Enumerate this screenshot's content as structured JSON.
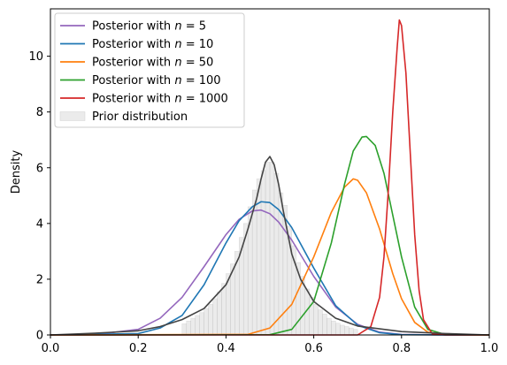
{
  "chart_data": {
    "type": "line",
    "title": "",
    "xlabel": "",
    "ylabel": "Density",
    "xlim": [
      0.0,
      1.0
    ],
    "ylim": [
      0,
      11.7
    ],
    "xticks": [
      "0.0",
      "0.2",
      "0.4",
      "0.6",
      "0.8",
      "1.0"
    ],
    "yticks": [
      "0",
      "2",
      "4",
      "6",
      "8",
      "10"
    ],
    "grid": false,
    "legend_position": "top-left",
    "series": [
      {
        "name": "Posterior with n = 5",
        "legend_prefix": "Posterior with ",
        "legend_var": "n",
        "legend_rest": " = 5",
        "color": "#9467bd",
        "x": [
          0.0,
          0.1,
          0.2,
          0.25,
          0.3,
          0.35,
          0.4,
          0.43,
          0.46,
          0.48,
          0.5,
          0.52,
          0.55,
          0.6,
          0.65,
          0.7,
          0.75,
          0.8,
          0.9,
          1.0
        ],
        "y": [
          0.0,
          0.01,
          0.2,
          0.6,
          1.35,
          2.45,
          3.6,
          4.15,
          4.45,
          4.48,
          4.35,
          4.05,
          3.4,
          2.1,
          1.0,
          0.38,
          0.1,
          0.02,
          0.0,
          0.0
        ]
      },
      {
        "name": "Posterior with n = 10",
        "legend_prefix": "Posterior with ",
        "legend_var": "n",
        "legend_rest": " = 10",
        "color": "#1f77b4",
        "x": [
          0.0,
          0.2,
          0.25,
          0.3,
          0.35,
          0.4,
          0.43,
          0.46,
          0.48,
          0.5,
          0.52,
          0.55,
          0.6,
          0.65,
          0.7,
          0.75,
          0.8,
          0.9,
          1.0
        ],
        "y": [
          0.0,
          0.05,
          0.25,
          0.7,
          1.8,
          3.3,
          4.1,
          4.6,
          4.78,
          4.75,
          4.5,
          3.85,
          2.4,
          1.05,
          0.35,
          0.08,
          0.01,
          0.0,
          0.0
        ]
      },
      {
        "name": "Posterior with n = 50",
        "legend_prefix": "Posterior with ",
        "legend_var": "n",
        "legend_rest": " = 50",
        "color": "#ff7f0e",
        "x": [
          0.0,
          0.45,
          0.5,
          0.55,
          0.6,
          0.64,
          0.67,
          0.69,
          0.7,
          0.72,
          0.75,
          0.78,
          0.8,
          0.83,
          0.86,
          0.9,
          1.0
        ],
        "y": [
          0.0,
          0.02,
          0.25,
          1.1,
          2.8,
          4.4,
          5.3,
          5.6,
          5.55,
          5.1,
          3.8,
          2.2,
          1.3,
          0.45,
          0.1,
          0.01,
          0.0
        ]
      },
      {
        "name": "Posterior with n = 100",
        "legend_prefix": "Posterior with ",
        "legend_var": "n",
        "legend_rest": " = 100",
        "color": "#2ca02c",
        "x": [
          0.0,
          0.5,
          0.55,
          0.6,
          0.64,
          0.67,
          0.69,
          0.71,
          0.72,
          0.74,
          0.76,
          0.78,
          0.8,
          0.83,
          0.86,
          0.9,
          1.0
        ],
        "y": [
          0.0,
          0.01,
          0.2,
          1.2,
          3.3,
          5.4,
          6.6,
          7.1,
          7.12,
          6.8,
          5.8,
          4.3,
          2.8,
          1.0,
          0.2,
          0.01,
          0.0
        ]
      },
      {
        "name": "Posterior with n = 1000",
        "legend_prefix": "Posterior with ",
        "legend_var": "n",
        "legend_rest": " = 1000",
        "color": "#d62728",
        "x": [
          0.0,
          0.7,
          0.73,
          0.75,
          0.76,
          0.77,
          0.78,
          0.79,
          0.795,
          0.8,
          0.81,
          0.82,
          0.83,
          0.84,
          0.85,
          0.87,
          0.9,
          1.0
        ],
        "y": [
          0.0,
          0.0,
          0.3,
          1.35,
          2.8,
          5.2,
          8.0,
          10.3,
          11.3,
          11.1,
          9.4,
          6.5,
          3.6,
          1.6,
          0.55,
          0.04,
          0.0,
          0.0
        ]
      },
      {
        "name": "",
        "color": "#444444",
        "x": [
          0.0,
          0.1,
          0.2,
          0.25,
          0.3,
          0.35,
          0.4,
          0.43,
          0.45,
          0.47,
          0.48,
          0.49,
          0.5,
          0.51,
          0.52,
          0.53,
          0.55,
          0.57,
          0.6,
          0.65,
          0.7,
          0.8,
          0.9,
          1.0
        ],
        "y": [
          0.0,
          0.06,
          0.15,
          0.3,
          0.55,
          0.95,
          1.8,
          2.8,
          3.8,
          4.9,
          5.6,
          6.2,
          6.4,
          6.1,
          5.4,
          4.5,
          2.9,
          2.0,
          1.2,
          0.6,
          0.32,
          0.12,
          0.05,
          0.0
        ]
      }
    ],
    "prior_histogram": {
      "name": "Prior distribution",
      "color": "#cccccc",
      "bin_width": 0.01,
      "centers": [
        0.305,
        0.315,
        0.325,
        0.335,
        0.345,
        0.355,
        0.365,
        0.375,
        0.385,
        0.395,
        0.405,
        0.415,
        0.425,
        0.435,
        0.445,
        0.455,
        0.465,
        0.475,
        0.485,
        0.495,
        0.505,
        0.515,
        0.525,
        0.535,
        0.545,
        0.555,
        0.565,
        0.575,
        0.585,
        0.595,
        0.605,
        0.615,
        0.625,
        0.635,
        0.645,
        0.655,
        0.665,
        0.675,
        0.685,
        0.695
      ],
      "heights": [
        0.4,
        0.5,
        0.6,
        0.7,
        0.8,
        0.95,
        1.1,
        1.3,
        1.55,
        1.85,
        2.2,
        2.55,
        3.0,
        3.5,
        4.0,
        4.6,
        5.2,
        5.6,
        5.9,
        6.2,
        6.2,
        5.8,
        5.1,
        4.65,
        3.9,
        3.2,
        2.6,
        2.1,
        1.65,
        1.35,
        1.1,
        0.9,
        0.75,
        0.6,
        0.5,
        0.42,
        0.35,
        0.3,
        0.25,
        0.2
      ]
    }
  }
}
